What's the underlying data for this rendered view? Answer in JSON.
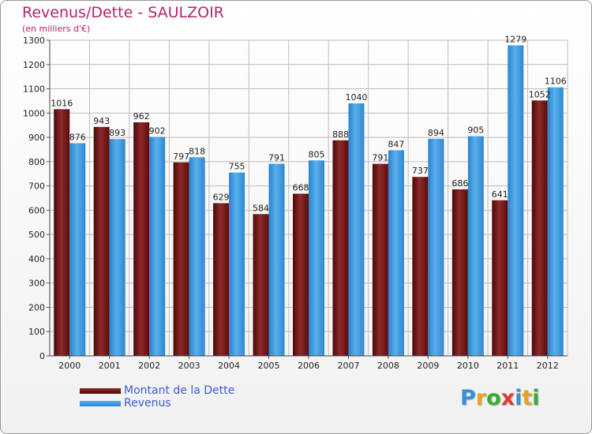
{
  "title": "Revenus/Dette - SAULZOIR",
  "subtitle": "(en milliers d'€)",
  "logo": {
    "text": "Proxiti",
    "letter_colors": [
      "#3a8fd6",
      "#e8a21e",
      "#3aaa35",
      "#e03a2b",
      "#3a8fd6",
      "#e8a21e",
      "#3aaa35"
    ]
  },
  "colors": {
    "dette": "#6e1010",
    "revenus": "#3a98dc",
    "grid": "#bdbdbd"
  },
  "legend": {
    "dette": "Montant de la Dette",
    "revenus": "Revenus"
  },
  "chart_data": {
    "type": "bar",
    "title": "Revenus/Dette - SAULZOIR",
    "subtitle": "(en milliers d'€)",
    "categories": [
      "2000",
      "2001",
      "2002",
      "2003",
      "2004",
      "2005",
      "2006",
      "2007",
      "2008",
      "2009",
      "2010",
      "2011",
      "2012"
    ],
    "series": [
      {
        "name": "Montant de la Dette",
        "values": [
          1016,
          943,
          962,
          797,
          629,
          584,
          668,
          888,
          791,
          737,
          686,
          641,
          1052
        ]
      },
      {
        "name": "Revenus",
        "values": [
          876,
          893,
          902,
          818,
          755,
          791,
          805,
          1040,
          847,
          894,
          905,
          1279,
          1106
        ]
      }
    ],
    "ylim": [
      0,
      1300
    ],
    "yticks": [
      0,
      100,
      200,
      300,
      400,
      500,
      600,
      700,
      800,
      900,
      1000,
      1100,
      1200,
      1300
    ],
    "grid": true,
    "legend_position": "bottom-left"
  }
}
